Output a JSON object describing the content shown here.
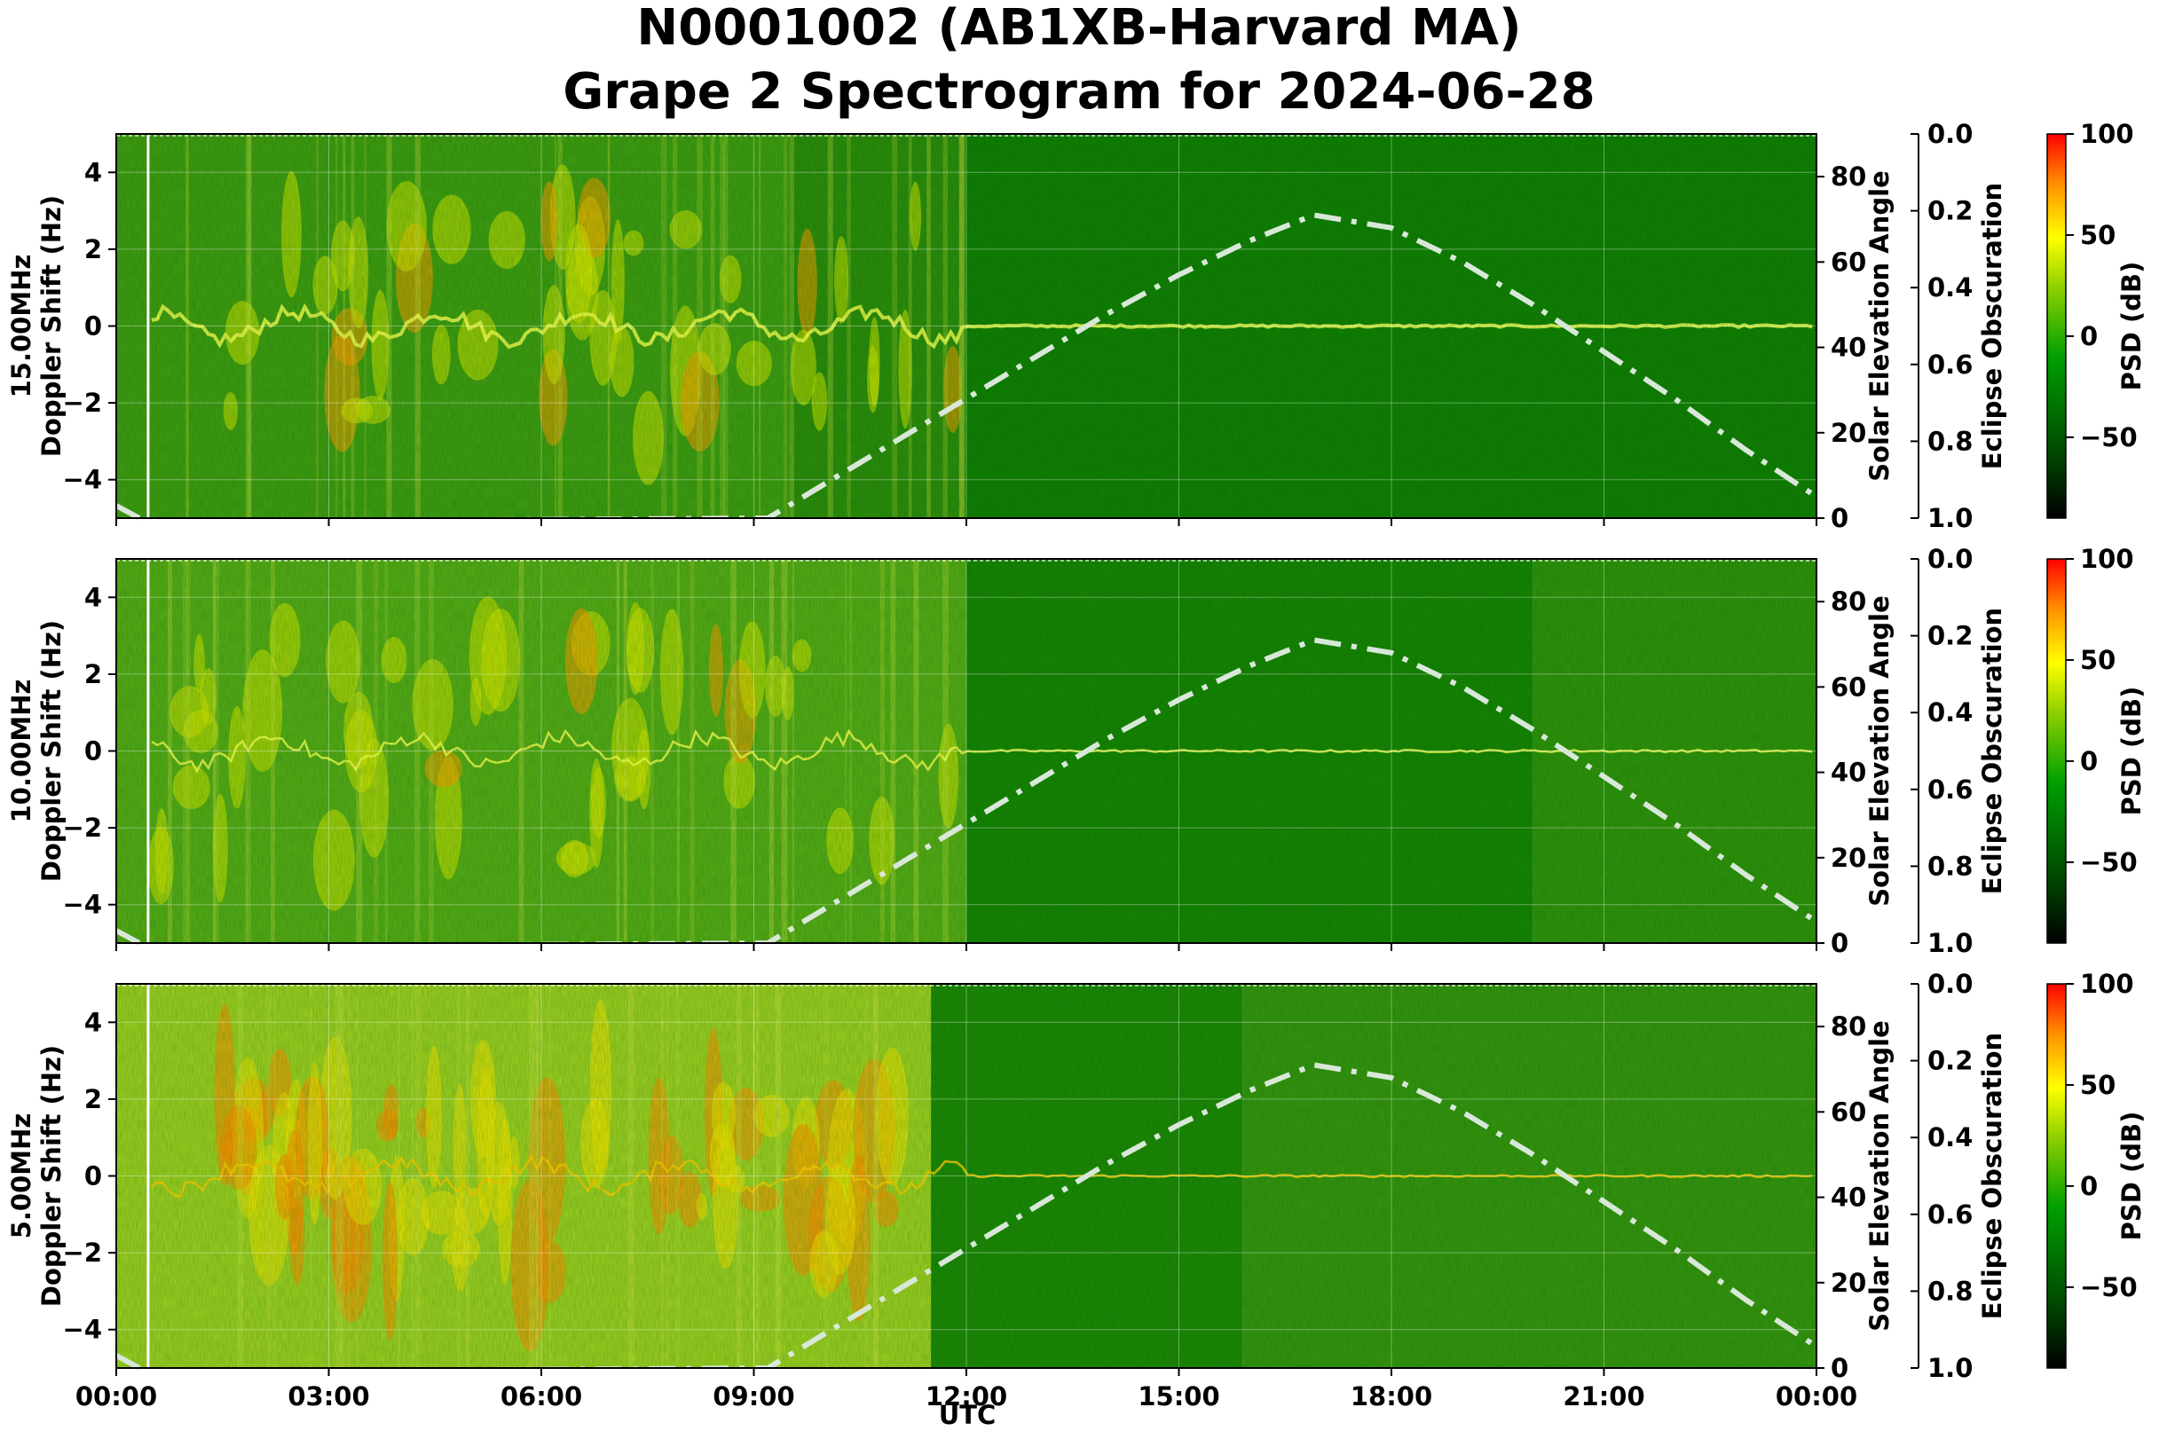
{
  "chart_data": {
    "type": "heatmap",
    "title_lines": [
      "N0001002 (AB1XB-Harvard MA)",
      "Grape 2 Spectrogram for 2024-06-28"
    ],
    "xlabel": "UTC",
    "x_ticks": [
      "00:00",
      "03:00",
      "06:00",
      "09:00",
      "12:00",
      "15:00",
      "18:00",
      "21:00",
      "00:00"
    ],
    "xlim_hours": [
      0,
      24
    ],
    "grid": true,
    "panels": [
      {
        "name": "15.00MHz",
        "ylabel_lines": [
          "15.00MHz",
          "Doppler Shift (Hz)"
        ],
        "ylim": [
          -5,
          5
        ],
        "y_ticks": [
          "4",
          "2",
          "0",
          "−2",
          "−4"
        ],
        "dominant_trace_hz": 0.0,
        "strong_activity_hours": [
          0.5,
          12.0
        ]
      },
      {
        "name": "10.00MHz",
        "ylabel_lines": [
          "10.00MHz",
          "Doppler Shift (Hz)"
        ],
        "ylim": [
          -5,
          5
        ],
        "y_ticks": [
          "4",
          "2",
          "0",
          "−2",
          "−4"
        ],
        "dominant_trace_hz": 0.0,
        "strong_activity_hours": [
          0.5,
          12.0
        ]
      },
      {
        "name": "5.00MHz",
        "ylabel_lines": [
          "5.00MHz",
          "Doppler Shift (Hz)"
        ],
        "ylim": [
          -5,
          5
        ],
        "y_ticks": [
          "4",
          "2",
          "0",
          "−2",
          "−4"
        ],
        "dominant_trace_hz": 0.0,
        "strong_activity_hours": [
          1.5,
          11.0
        ]
      }
    ],
    "solar_axis": {
      "label": "Solar Elevation Angle",
      "ylim": [
        0,
        90
      ],
      "ticks": [
        "80",
        "60",
        "40",
        "20",
        "0"
      ],
      "style": "dash-dot",
      "color": "#d8e8d8",
      "series": {
        "name": "Solar Elevation Angle",
        "x_hours": [
          0,
          9.2,
          10,
          11,
          12,
          13,
          14,
          15,
          16,
          16.9,
          18,
          19,
          20,
          21,
          22,
          23,
          24
        ],
        "values": [
          -1,
          0,
          8,
          18,
          28,
          38,
          48,
          57,
          65,
          71,
          68,
          60,
          50,
          39,
          28,
          16,
          5
        ]
      }
    },
    "eclipse_axis": {
      "label": "Eclipse Obscuration",
      "ylim": [
        1.0,
        0.0
      ],
      "ticks": [
        "0.0",
        "0.2",
        "0.4",
        "0.6",
        "0.8",
        "1.0"
      ]
    },
    "colorbar": {
      "label": "PSD (dB)",
      "range": [
        -90,
        100
      ],
      "ticks": [
        "100",
        "50",
        "0",
        "−50"
      ],
      "colors": [
        "#000000",
        "#006400",
        "#00a000",
        "#a0e000",
        "#ffff00",
        "#ff8000",
        "#ff0000"
      ]
    }
  }
}
